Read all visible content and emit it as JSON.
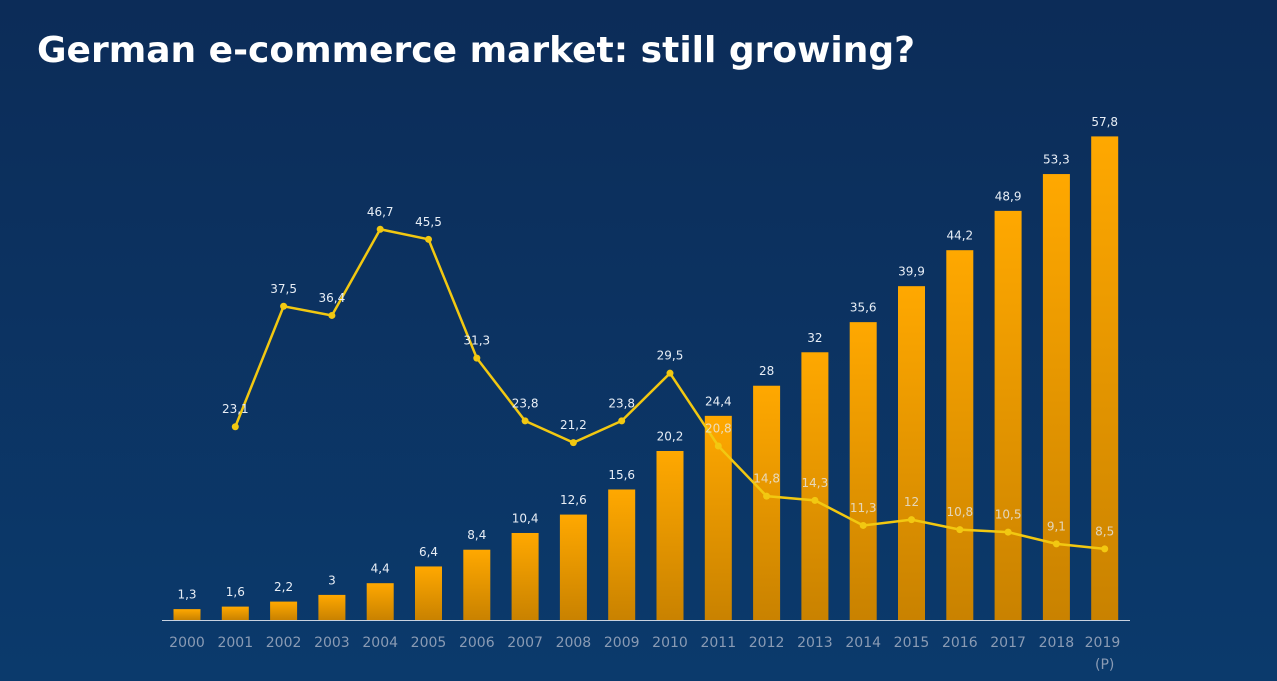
{
  "chart_data": {
    "type": "bar",
    "title": "German e-commerce market: still growing?",
    "categories": [
      "2000",
      "2001",
      "2002",
      "2003",
      "2004",
      "2005",
      "2006",
      "2007",
      "2008",
      "2009",
      "2010",
      "2011",
      "2012",
      "2013",
      "2014",
      "2015",
      "2016",
      "2017",
      "2018",
      "2019 (P)"
    ],
    "series": [
      {
        "type": "bar",
        "color": "#f5a300",
        "values": [
          1.3,
          1.6,
          2.2,
          3,
          4.4,
          6.4,
          8.4,
          10.4,
          12.6,
          15.6,
          20.2,
          24.4,
          28,
          32,
          35.6,
          39.9,
          44.2,
          48.9,
          53.3,
          57.8
        ],
        "value_labels": [
          "1,3",
          "1,6",
          "2,2",
          "3",
          "4,4",
          "6,4",
          "8,4",
          "10,4",
          "12,6",
          "15,6",
          "20,2",
          "24,4",
          "28",
          "32",
          "35,6",
          "39,9",
          "44,2",
          "48,9",
          "53,3",
          "57,8"
        ]
      },
      {
        "type": "line",
        "color": "#f2c811",
        "values": [
          null,
          23.1,
          37.5,
          36.4,
          46.7,
          45.5,
          31.3,
          23.8,
          21.2,
          23.8,
          29.5,
          20.8,
          14.8,
          14.3,
          11.3,
          12,
          10.8,
          10.5,
          9.1,
          8.5
        ],
        "value_labels": [
          null,
          "23,1",
          "37,5",
          "36,4",
          "46,7",
          "45,5",
          "31,3",
          "23,8",
          "21,2",
          "23,8",
          "29,5",
          "20,8",
          "14,8",
          "14,3",
          "11,3",
          "12",
          "10,8",
          "10,5",
          "9,1",
          "8,5"
        ]
      }
    ],
    "ylim": [
      0,
      60
    ]
  }
}
